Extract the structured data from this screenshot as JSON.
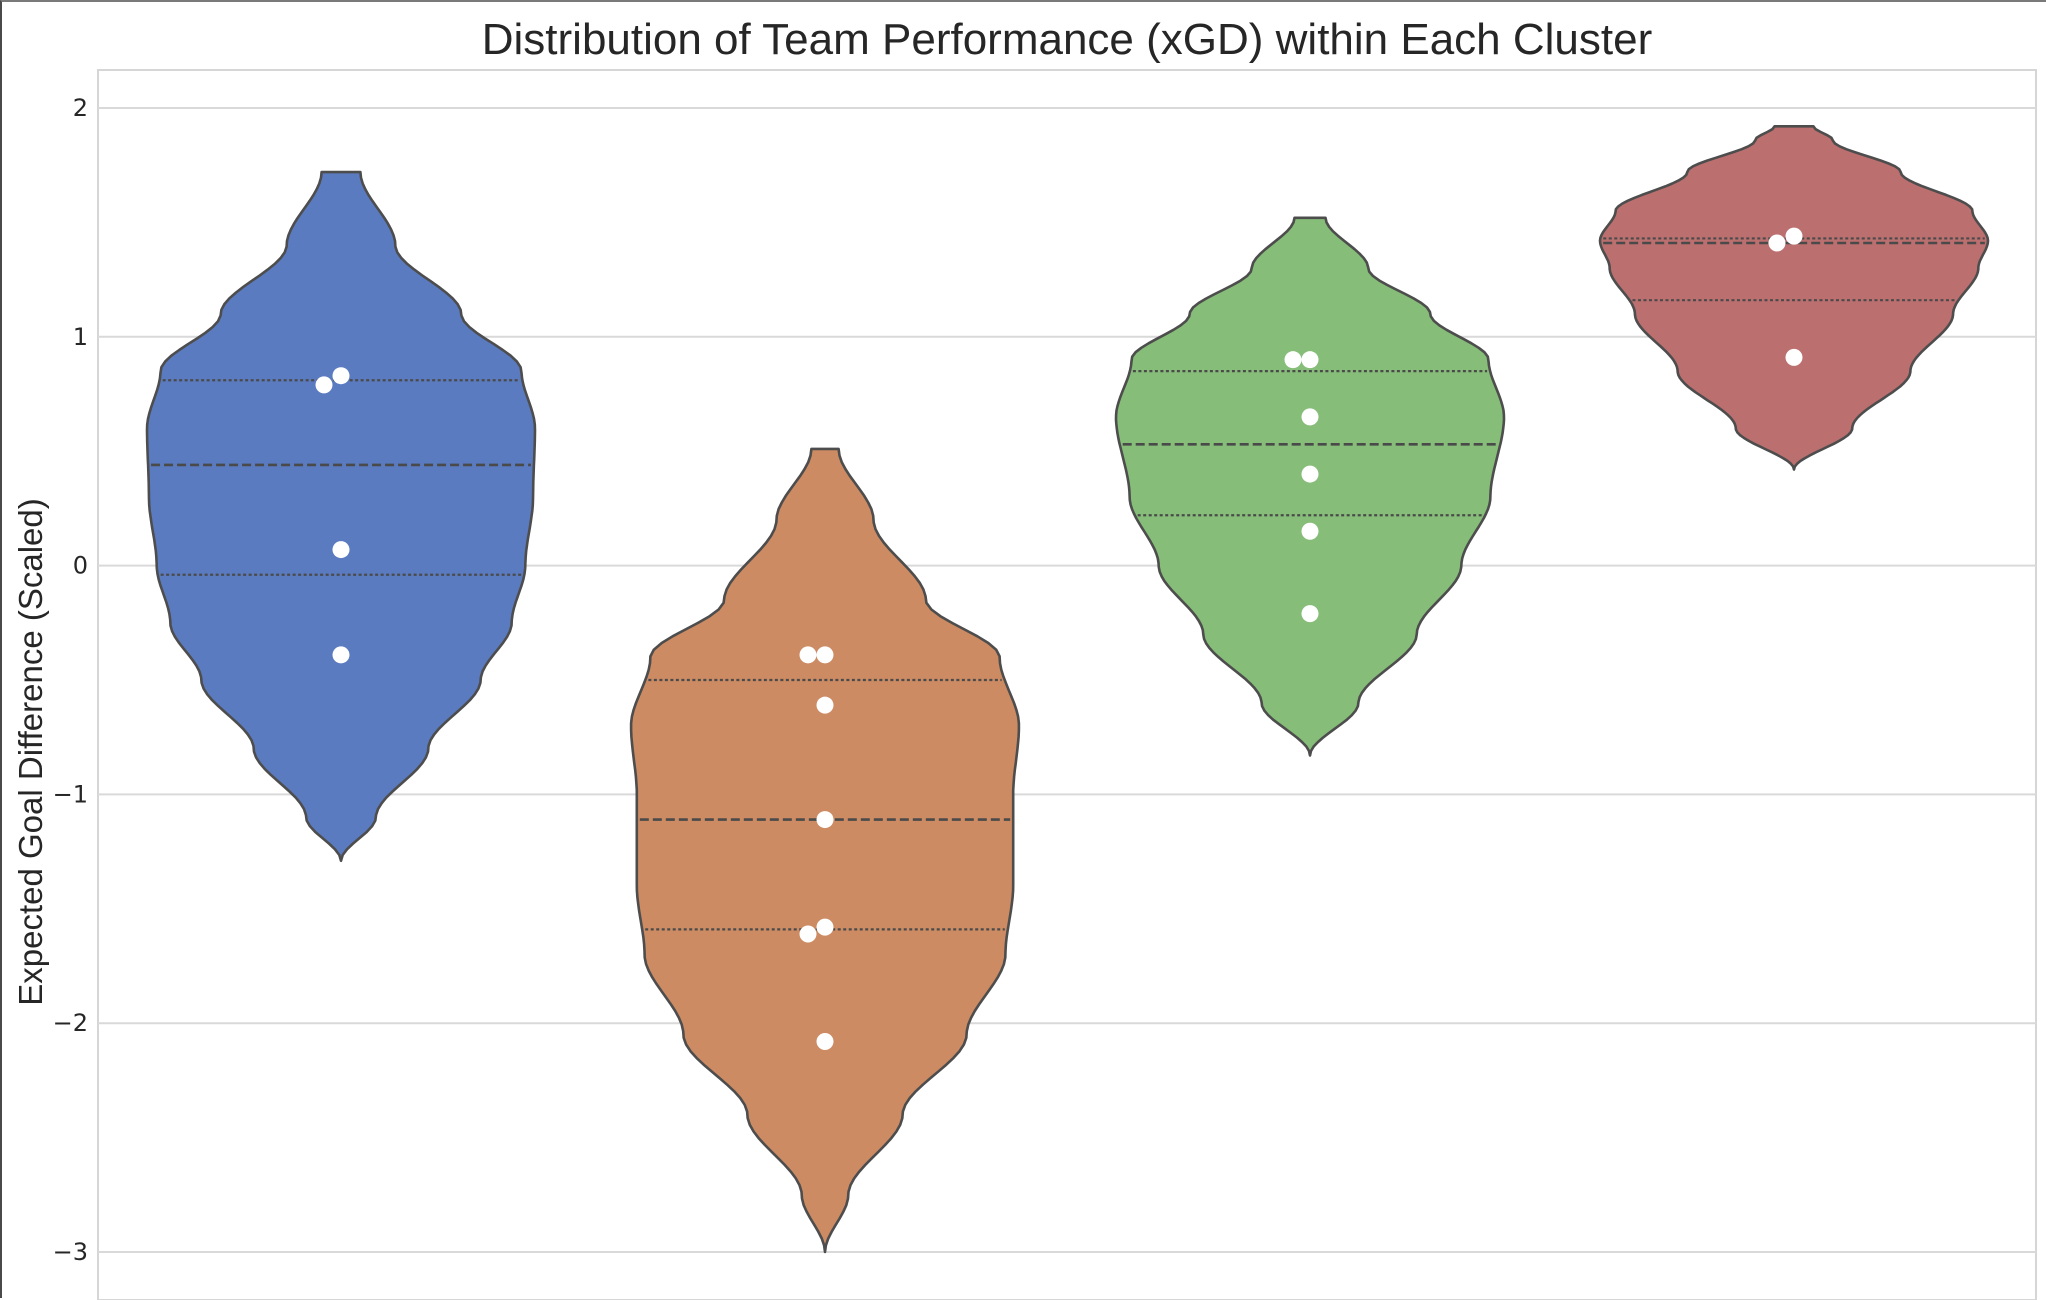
{
  "chart_data": {
    "type": "violin",
    "title": "Distribution of Team Performance (xGD) within Each Cluster",
    "xlabel": "",
    "ylabel": "Expected Goal Difference (Scaled)",
    "ylim": [
      -3.2,
      2.17
    ],
    "yticks": [
      2,
      1,
      0,
      -1,
      -2,
      -3
    ],
    "ytick_labels": [
      "2",
      "1",
      "0",
      "−1",
      "−2",
      "−3"
    ],
    "grid": true,
    "inner": "quartile",
    "series": [
      {
        "color": "#5b7bc0",
        "points": [
          0.83,
          0.79,
          0.07,
          -0.39
        ],
        "extent": [
          -1.29,
          1.72
        ],
        "quartiles": [
          -0.04,
          0.44,
          0.81
        ],
        "density": [
          [
            -1.29,
            0.0
          ],
          [
            -1.1,
            0.18
          ],
          [
            -0.8,
            0.45
          ],
          [
            -0.5,
            0.72
          ],
          [
            -0.25,
            0.88
          ],
          [
            0.0,
            0.95
          ],
          [
            0.3,
            0.99
          ],
          [
            0.6,
            1.0
          ],
          [
            0.85,
            0.93
          ],
          [
            1.1,
            0.62
          ],
          [
            1.4,
            0.28
          ],
          [
            1.72,
            0.1
          ]
        ]
      },
      {
        "color": "#cc8b63",
        "points": [
          -0.39,
          -0.39,
          -0.61,
          -1.11,
          -1.58,
          -1.61,
          -2.08
        ],
        "extent": [
          -3.0,
          0.51
        ],
        "quartiles": [
          -1.59,
          -1.11,
          -0.5
        ],
        "density": [
          [
            -3.0,
            0.0
          ],
          [
            -2.75,
            0.12
          ],
          [
            -2.4,
            0.4
          ],
          [
            -2.05,
            0.73
          ],
          [
            -1.7,
            0.93
          ],
          [
            -1.4,
            0.97
          ],
          [
            -1.0,
            0.97
          ],
          [
            -0.7,
            1.0
          ],
          [
            -0.4,
            0.9
          ],
          [
            -0.15,
            0.52
          ],
          [
            0.2,
            0.25
          ],
          [
            0.51,
            0.07
          ]
        ]
      },
      {
        "color": "#86bd78",
        "points": [
          0.9,
          0.9,
          0.65,
          0.4,
          0.15,
          -0.21
        ],
        "extent": [
          -0.83,
          1.52
        ],
        "quartiles": [
          0.22,
          0.53,
          0.85
        ],
        "density": [
          [
            -0.83,
            0.0
          ],
          [
            -0.6,
            0.25
          ],
          [
            -0.3,
            0.55
          ],
          [
            0.0,
            0.78
          ],
          [
            0.3,
            0.93
          ],
          [
            0.65,
            1.0
          ],
          [
            0.9,
            0.92
          ],
          [
            1.1,
            0.62
          ],
          [
            1.3,
            0.3
          ],
          [
            1.52,
            0.08
          ]
        ]
      },
      {
        "color": "#bc6f6f",
        "points": [
          1.44,
          1.41,
          0.91
        ],
        "extent": [
          0.42,
          1.92
        ],
        "quartiles": [
          1.16,
          1.41,
          1.43
        ],
        "density": [
          [
            0.42,
            0.0
          ],
          [
            0.6,
            0.3
          ],
          [
            0.85,
            0.6
          ],
          [
            1.1,
            0.82
          ],
          [
            1.3,
            0.95
          ],
          [
            1.42,
            1.0
          ],
          [
            1.55,
            0.92
          ],
          [
            1.72,
            0.55
          ],
          [
            1.86,
            0.2
          ],
          [
            1.92,
            0.1
          ]
        ]
      }
    ]
  }
}
